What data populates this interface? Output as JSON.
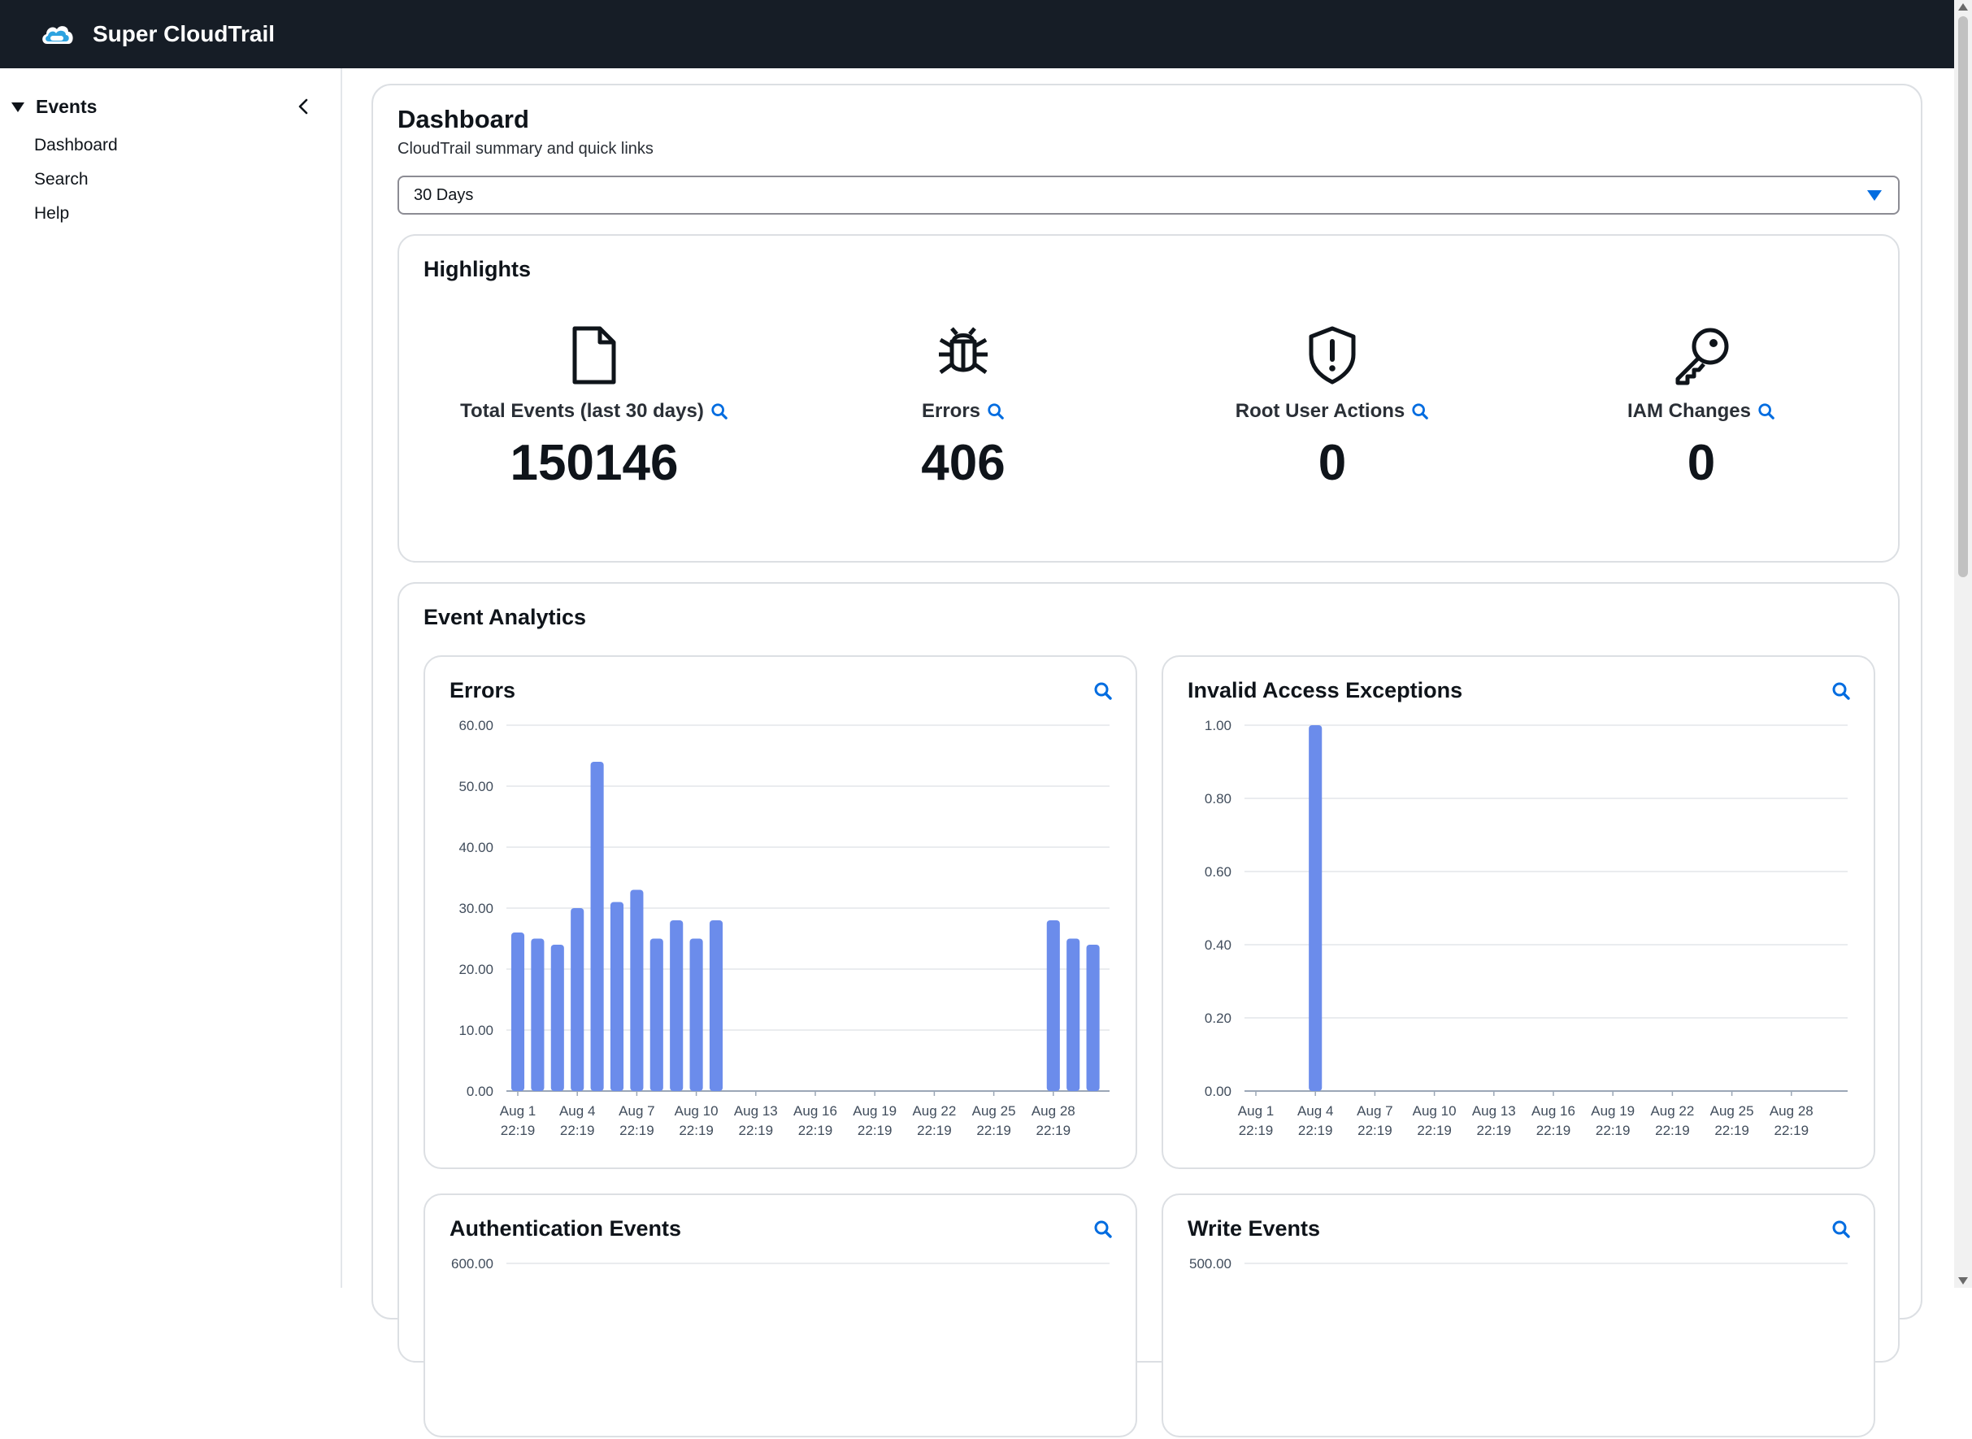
{
  "app": {
    "title": "Super CloudTrail",
    "logo_icon": "cloud-logo-icon"
  },
  "sidebar": {
    "section_title": "Events",
    "items": [
      {
        "label": "Dashboard"
      },
      {
        "label": "Search"
      },
      {
        "label": "Help"
      }
    ]
  },
  "main": {
    "title": "Dashboard",
    "subtitle": "CloudTrail summary and quick links",
    "range_select": {
      "value": "30 Days"
    }
  },
  "highlights": {
    "title": "Highlights",
    "items": [
      {
        "label": "Total Events (last 30 days)",
        "value": "150146",
        "icon": "document-icon"
      },
      {
        "label": "Errors",
        "value": "406",
        "icon": "bug-icon"
      },
      {
        "label": "Root User Actions",
        "value": "0",
        "icon": "shield-alert-icon"
      },
      {
        "label": "IAM Changes",
        "value": "0",
        "icon": "key-icon"
      }
    ]
  },
  "analytics": {
    "title": "Event Analytics"
  },
  "colors": {
    "accent": "#006ce0",
    "bar": "#6b8ceb",
    "topbar": "#161d26"
  },
  "chart_data": [
    {
      "type": "bar",
      "title": "Errors",
      "x_ticks": [
        "Aug 1\n22:19",
        "Aug 4\n22:19",
        "Aug 7\n22:19",
        "Aug 10\n22:19",
        "Aug 13\n22:19",
        "Aug 16\n22:19",
        "Aug 19\n22:19",
        "Aug 22\n22:19",
        "Aug 25\n22:19",
        "Aug 28\n22:19"
      ],
      "y_ticks": [
        "0.00",
        "10.00",
        "20.00",
        "30.00",
        "40.00",
        "50.00",
        "60.00"
      ],
      "ylim": [
        0,
        60
      ],
      "categories": [
        "Aug 1",
        "Aug 2",
        "Aug 3",
        "Aug 4",
        "Aug 5",
        "Aug 6",
        "Aug 7",
        "Aug 8",
        "Aug 9",
        "Aug 10",
        "Aug 11",
        "Aug 12",
        "Aug 13",
        "Aug 14",
        "Aug 15",
        "Aug 16",
        "Aug 17",
        "Aug 18",
        "Aug 19",
        "Aug 20",
        "Aug 21",
        "Aug 22",
        "Aug 23",
        "Aug 24",
        "Aug 25",
        "Aug 26",
        "Aug 27",
        "Aug 28",
        "Aug 29",
        "Aug 30"
      ],
      "values": [
        26,
        25,
        24,
        30,
        54,
        31,
        33,
        25,
        28,
        25,
        28,
        0,
        0,
        0,
        0,
        0,
        0,
        0,
        0,
        0,
        0,
        0,
        0,
        0,
        0,
        0,
        0,
        28,
        25,
        24
      ]
    },
    {
      "type": "bar",
      "title": "Invalid Access Exceptions",
      "x_ticks": [
        "Aug 1\n22:19",
        "Aug 4\n22:19",
        "Aug 7\n22:19",
        "Aug 10\n22:19",
        "Aug 13\n22:19",
        "Aug 16\n22:19",
        "Aug 19\n22:19",
        "Aug 22\n22:19",
        "Aug 25\n22:19",
        "Aug 28\n22:19"
      ],
      "y_ticks": [
        "0.00",
        "0.20",
        "0.40",
        "0.60",
        "0.80",
        "1.00"
      ],
      "ylim": [
        0,
        1
      ],
      "categories": [
        "Aug 4"
      ],
      "values": [
        1
      ]
    },
    {
      "type": "bar",
      "title": "Authentication Events",
      "y_ticks": [
        "600.00"
      ]
    },
    {
      "type": "bar",
      "title": "Write Events",
      "y_ticks": [
        "500.00"
      ]
    }
  ]
}
